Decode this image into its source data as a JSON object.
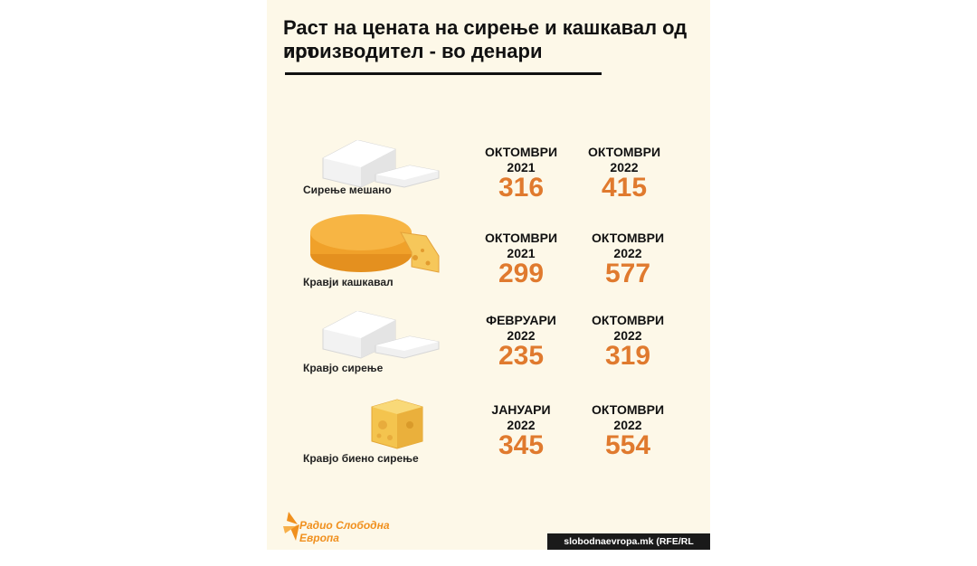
{
  "title_line1": "Раст на цената на сирење и кашкавал од ист",
  "title_line2": "производител - во денари",
  "chart_data": {
    "type": "table",
    "title": "Раст на цената на сирење и кашкавал од ист производител - во денари",
    "unit": "денари",
    "rows": [
      {
        "product": "Сирење мешано",
        "icon": "feta-block-icon",
        "from": {
          "month": "ОКТОМВРИ",
          "year": "2021",
          "price": 316
        },
        "to": {
          "month": "ОКТОМВРИ",
          "year": "2022",
          "price": 415
        }
      },
      {
        "product": "Кравји кашкавал",
        "icon": "cheese-wheel-icon",
        "from": {
          "month": "ОКТОМВРИ",
          "year": "2021",
          "price": 299
        },
        "to": {
          "month": "ОКТОМВРИ",
          "year": "2022",
          "price": 577
        }
      },
      {
        "product": "Кравјо сирење",
        "icon": "feta-block-icon",
        "from": {
          "month": "ФЕВРУАРИ",
          "year": "2022",
          "price": 235
        },
        "to": {
          "month": "ОКТОМВРИ",
          "year": "2022",
          "price": 319
        }
      },
      {
        "product": "Кравјо биено сирење",
        "icon": "cheese-slice-icon",
        "from": {
          "month": "ЈАНУАРИ",
          "year": "2022",
          "price": 345
        },
        "to": {
          "month": "ОКТОМВРИ",
          "year": "2022",
          "price": 554
        }
      }
    ]
  },
  "logo": {
    "line1": "Радио Слободна",
    "line2": "Европа"
  },
  "credit": "slobodnaevropa.mk (RFE/RL Graphics)",
  "colors": {
    "accent": "#e07a2e",
    "panel": "#fdf8e8",
    "cheese": "#f3a72e"
  }
}
